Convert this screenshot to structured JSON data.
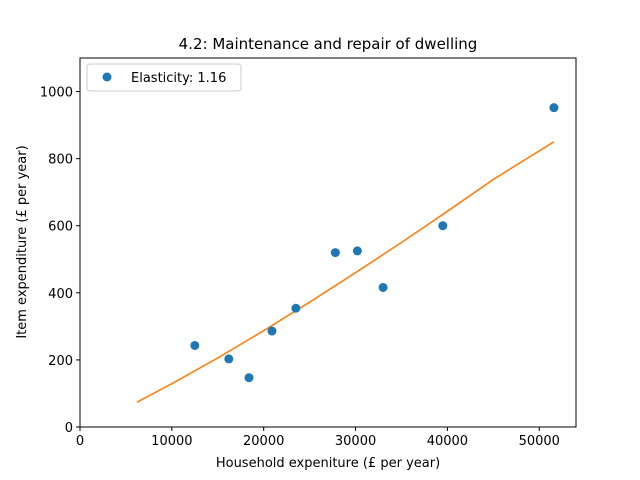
{
  "chart_data": {
    "type": "scatter",
    "title": "4.2: Maintenance and repair of dwelling",
    "xlabel": "Household expeniture (£ per year)",
    "ylabel": "Item expenditure (£ per year)",
    "xlim": [
      0,
      54000
    ],
    "ylim": [
      0,
      1100
    ],
    "xticks": [
      0,
      10000,
      20000,
      30000,
      40000,
      50000
    ],
    "yticks": [
      0,
      200,
      400,
      600,
      800,
      1000
    ],
    "grid": false,
    "legend_position": "top-left",
    "series": [
      {
        "name": "Elasticity: 1.16",
        "kind": "scatter",
        "color": "#1f77b4",
        "x": [
          12500,
          16200,
          18400,
          20900,
          23500,
          27800,
          30200,
          33000,
          39500,
          51600
        ],
        "y": [
          243,
          203,
          147,
          286,
          354,
          520,
          525,
          416,
          600,
          952
        ]
      },
      {
        "kind": "line",
        "color": "#ff7f0e",
        "x": [
          6200,
          10000,
          15000,
          20000,
          25000,
          30000,
          35000,
          40000,
          45000,
          51600
        ],
        "y": [
          74,
          129,
          206,
          287,
          372,
          460,
          550,
          643,
          738,
          850
        ]
      }
    ]
  }
}
